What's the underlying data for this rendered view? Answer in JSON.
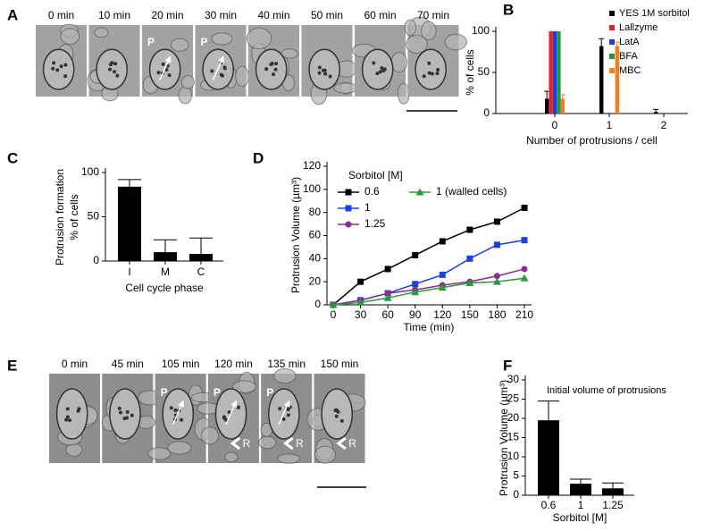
{
  "panel_labels": [
    "A",
    "B",
    "C",
    "D",
    "E",
    "F"
  ],
  "micrographs": [
    {
      "frames": [
        {
          "time": "0 min"
        },
        {
          "time": "10 min"
        },
        {
          "time": "20 min",
          "markers": [
            "P"
          ]
        },
        {
          "time": "30 min",
          "markers": [
            "P"
          ]
        },
        {
          "time": "40 min"
        },
        {
          "time": "50 min"
        },
        {
          "time": "60 min"
        },
        {
          "time": "70 min"
        }
      ]
    },
    {
      "frames": [
        {
          "time": "0 min"
        },
        {
          "time": "45 min"
        },
        {
          "time": "105 min",
          "markers": [
            "P"
          ]
        },
        {
          "time": "120 min",
          "markers": [
            "P",
            "R"
          ]
        },
        {
          "time": "135 min",
          "markers": [
            "P",
            "R"
          ]
        },
        {
          "time": "150 min",
          "markers": [
            "R"
          ]
        }
      ]
    }
  ],
  "chart_data": [
    {
      "type": "bar",
      "ylabel": [
        "% of cells"
      ],
      "xlabel": "Number of protrusions / cell",
      "categories": [
        "0",
        "1",
        "2"
      ],
      "ylim": [
        0,
        100
      ],
      "yticks": [
        0,
        50,
        100
      ],
      "legend": "upper right",
      "series": [
        {
          "name": "YES 1M sorbitol",
          "color": "#000000",
          "values": [
            18,
            82,
            2
          ],
          "errors": [
            9,
            9,
            3
          ]
        },
        {
          "name": "Lallzyme",
          "color": "#e8202a",
          "values": [
            100,
            0,
            0
          ],
          "errors": [
            null,
            null,
            null
          ]
        },
        {
          "name": "LatA",
          "color": "#1f3fd6",
          "values": [
            100,
            0,
            0
          ],
          "errors": [
            null,
            null,
            null
          ]
        },
        {
          "name": "BFA",
          "color": "#1f9a3a",
          "values": [
            100,
            0,
            0
          ],
          "errors": [
            null,
            null,
            null
          ]
        },
        {
          "name": "MBC",
          "color": "#f07f1e",
          "values": [
            18,
            82,
            0
          ],
          "errors": [
            5,
            5,
            null
          ]
        }
      ]
    },
    {
      "type": "bar",
      "ylabel": [
        "Protrusion formation",
        "% of cells"
      ],
      "xlabel": "Cell cycle phase",
      "categories": [
        "I",
        "M",
        "C"
      ],
      "values": [
        84,
        10,
        8
      ],
      "errors": [
        8,
        14,
        18
      ],
      "color": "#000000",
      "ylim": [
        0,
        100
      ],
      "yticks": [
        0,
        50,
        100
      ]
    },
    {
      "type": "line",
      "ylabel": [
        "Protrusion Volume (µm³)"
      ],
      "xlabel": "Time (min)",
      "x": [
        0,
        30,
        60,
        90,
        120,
        150,
        180,
        210
      ],
      "xlim": [
        0,
        210
      ],
      "xticks": [
        0,
        30,
        60,
        90,
        120,
        150,
        180,
        210
      ],
      "ylim": [
        0,
        120
      ],
      "yticks": [
        0,
        20,
        40,
        60,
        80,
        100,
        120
      ],
      "legend_title": "Sorbitol [M]",
      "series": [
        {
          "name": "0.6",
          "color": "#000000",
          "marker": "square",
          "values": [
            0,
            20,
            31,
            43,
            55,
            65,
            72,
            84
          ]
        },
        {
          "name": "1",
          "color": "#1f3fe0",
          "marker": "square",
          "values": [
            0,
            4,
            10,
            18,
            26,
            40,
            52,
            56
          ]
        },
        {
          "name": "1.25",
          "color": "#8b2a8f",
          "marker": "circle",
          "values": [
            0,
            4,
            10,
            13,
            17,
            20,
            25,
            31
          ]
        },
        {
          "name": "1 (walled cells)",
          "color": "#2a9a3a",
          "marker": "triangle",
          "values": [
            0,
            2,
            6,
            11,
            15,
            19,
            20,
            23
          ]
        }
      ]
    },
    {
      "type": "bar",
      "ylabel": [
        "Protrusion Volume (µm³)"
      ],
      "xlabel": "Sorbitol [M]",
      "annotation": "Initial volume of protrusions",
      "categories": [
        "0.6",
        "1",
        "1.25"
      ],
      "values": [
        19.5,
        3,
        1.8
      ],
      "errors": [
        5,
        1.2,
        1.4
      ],
      "color": "#000000",
      "ylim": [
        0,
        30
      ],
      "yticks": [
        0,
        5,
        10,
        15,
        20,
        25,
        30
      ]
    }
  ]
}
